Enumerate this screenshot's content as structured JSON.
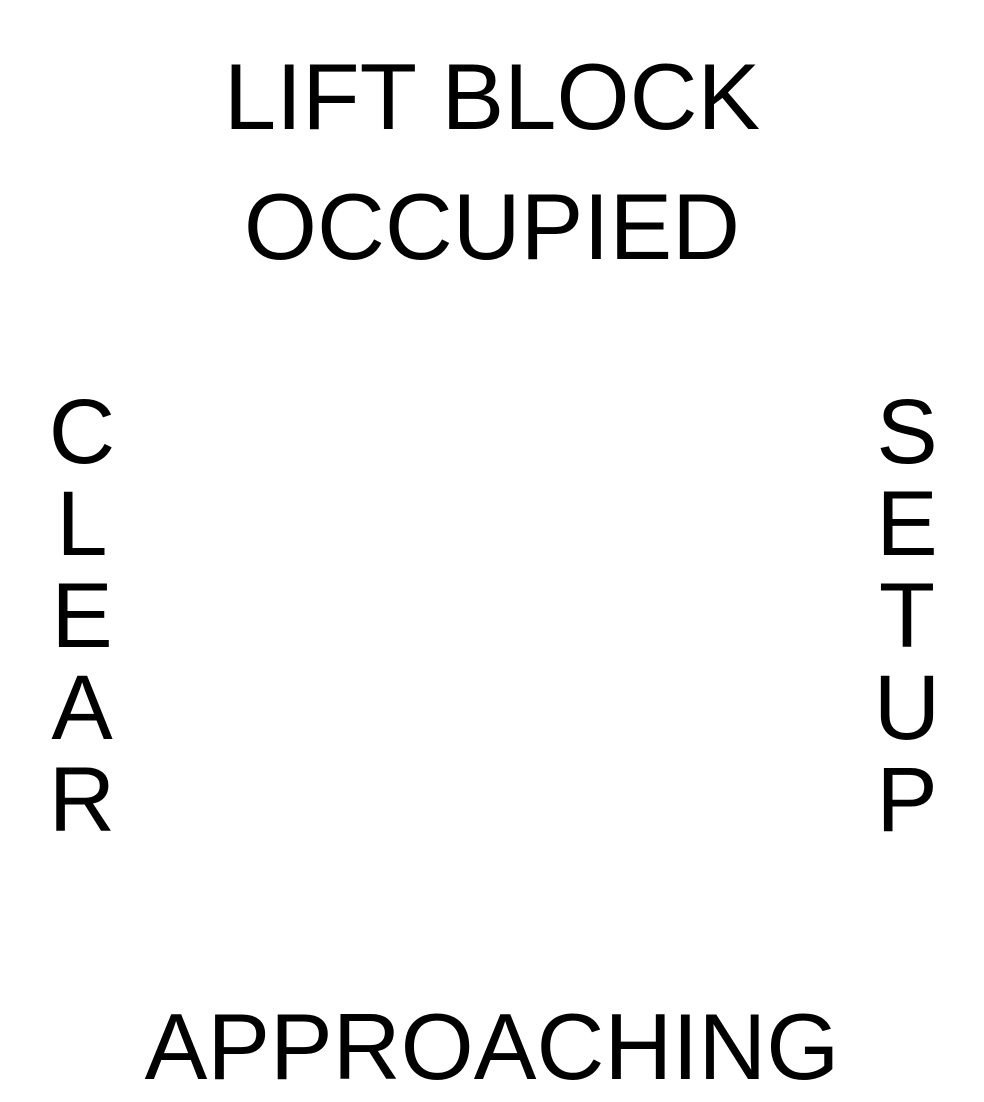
{
  "top": {
    "line1": "LIFT BLOCK",
    "line2": "OCCUPIED"
  },
  "left": {
    "text": "CLEAR",
    "letters": [
      "C",
      "L",
      "E",
      "A",
      "R"
    ]
  },
  "right": {
    "text": "SETUP",
    "letters": [
      "S",
      "E",
      "T",
      "U",
      "P"
    ]
  },
  "bottom": {
    "text": "APPROACHING"
  }
}
